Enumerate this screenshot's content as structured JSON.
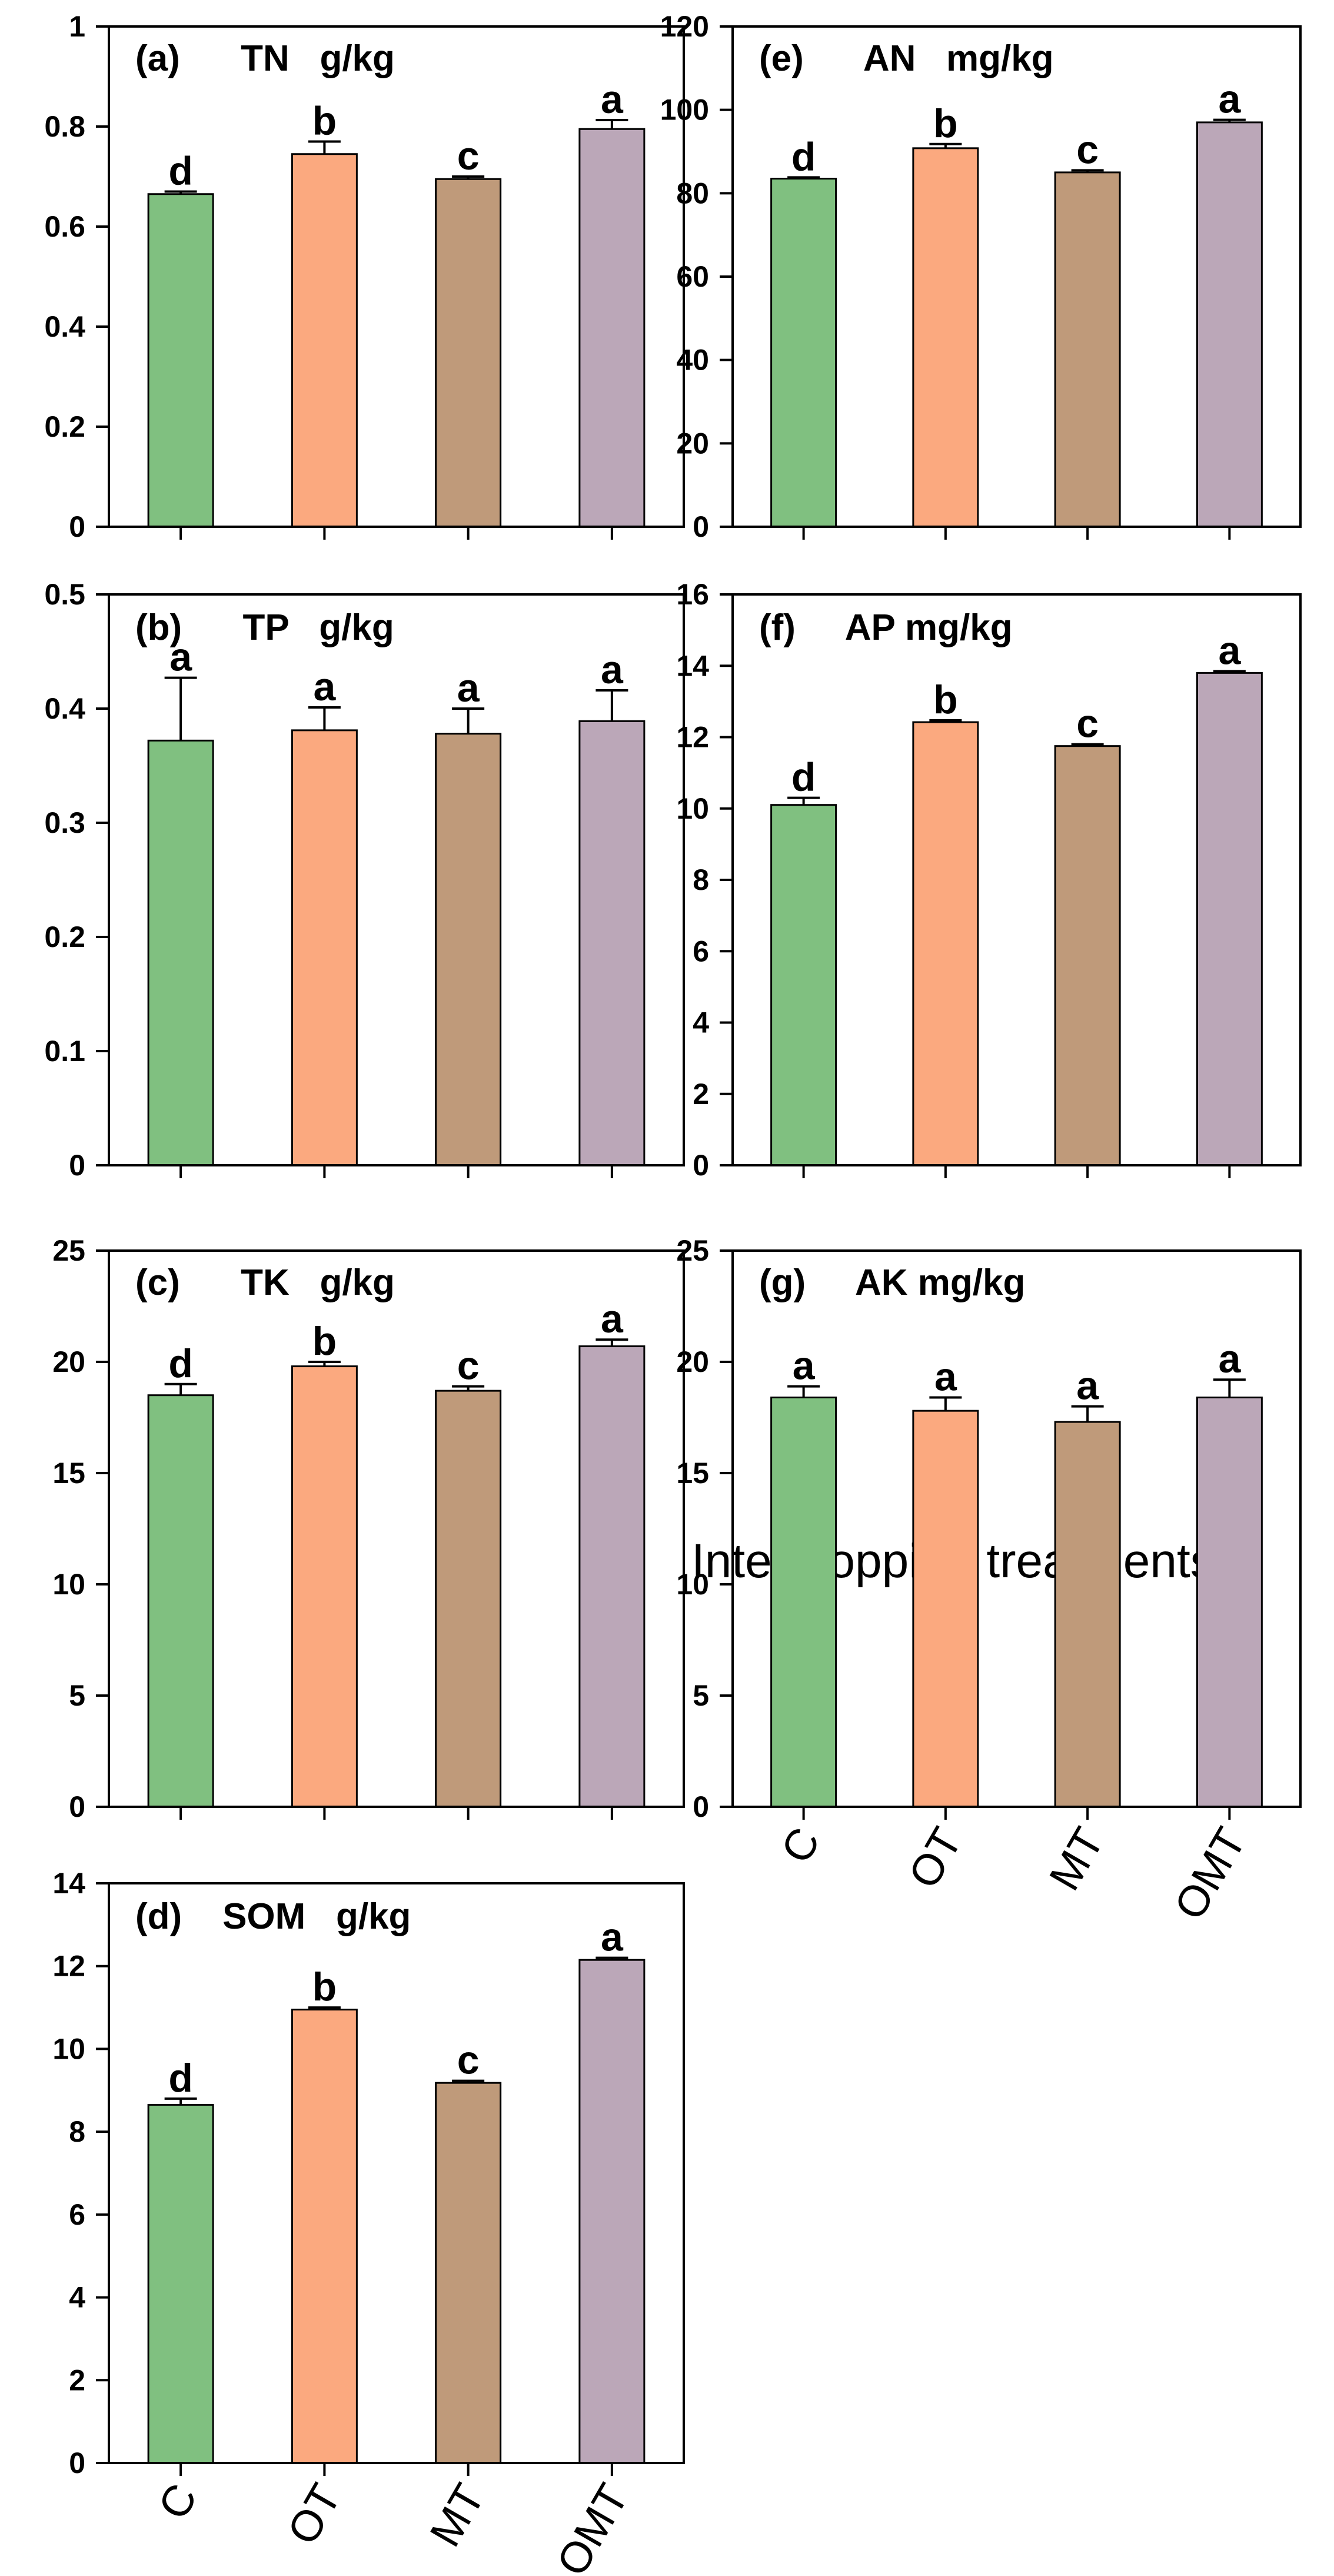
{
  "xaxis_title": "Intercropping treatments",
  "colors": {
    "C": "#80c080",
    "OT": "#fba97f",
    "MT": "#bf9a7a",
    "OMT": "#bba7b8"
  },
  "chart_data": [
    {
      "id": "a",
      "type": "bar",
      "title": "(a)      TN   g/kg",
      "categories": [
        "C",
        "OT",
        "MT",
        "OMT"
      ],
      "values": [
        0.665,
        0.745,
        0.695,
        0.795
      ],
      "errors": [
        0.005,
        0.025,
        0.005,
        0.018
      ],
      "letters": [
        "d",
        "b",
        "c",
        "a"
      ],
      "ylim": [
        0,
        1
      ],
      "yticks": [
        0,
        0.2,
        0.4,
        0.6,
        0.8,
        1
      ],
      "ytick_labels": [
        "0",
        "0.2",
        "0.4",
        "0.6",
        "0.8",
        "1"
      ]
    },
    {
      "id": "b",
      "type": "bar",
      "title": "(b)      TP   g/kg",
      "categories": [
        "C",
        "OT",
        "MT",
        "OMT"
      ],
      "values": [
        0.372,
        0.381,
        0.378,
        0.389
      ],
      "errors": [
        0.055,
        0.02,
        0.022,
        0.027
      ],
      "letters": [
        "a",
        "a",
        "a",
        "a"
      ],
      "ylim": [
        0,
        0.5
      ],
      "yticks": [
        0,
        0.1,
        0.2,
        0.3,
        0.4,
        0.5
      ],
      "ytick_labels": [
        "0",
        "0.1",
        "0.2",
        "0.3",
        "0.4",
        "0.5"
      ]
    },
    {
      "id": "c",
      "type": "bar",
      "title": "(c)      TK   g/kg",
      "categories": [
        "C",
        "OT",
        "MT",
        "OMT"
      ],
      "values": [
        18.5,
        19.8,
        18.7,
        20.7
      ],
      "errors": [
        0.5,
        0.2,
        0.2,
        0.3
      ],
      "letters": [
        "d",
        "b",
        "c",
        "a"
      ],
      "ylim": [
        0,
        25
      ],
      "yticks": [
        0,
        5,
        10,
        15,
        20,
        25
      ],
      "ytick_labels": [
        "0",
        "5",
        "10",
        "15",
        "20",
        "25"
      ]
    },
    {
      "id": "d",
      "type": "bar",
      "title": "(d)    SOM   g/kg",
      "categories": [
        "C",
        "OT",
        "MT",
        "OMT"
      ],
      "values": [
        8.65,
        10.95,
        9.18,
        12.15
      ],
      "errors": [
        0.15,
        0.05,
        0.05,
        0.05
      ],
      "letters": [
        "d",
        "b",
        "c",
        "a"
      ],
      "ylim": [
        0,
        14
      ],
      "yticks": [
        0,
        2,
        4,
        6,
        8,
        10,
        12,
        14
      ],
      "ytick_labels": [
        "0",
        "2",
        "4",
        "6",
        "8",
        "10",
        "12",
        "14"
      ]
    },
    {
      "id": "e",
      "type": "bar",
      "title": "(e)      AN   mg/kg",
      "categories": [
        "C",
        "OT",
        "MT",
        "OMT"
      ],
      "values": [
        83.5,
        90.8,
        85.0,
        97.0
      ],
      "errors": [
        0.3,
        1.0,
        0.5,
        0.6
      ],
      "letters": [
        "d",
        "b",
        "c",
        "a"
      ],
      "ylim": [
        0,
        120
      ],
      "yticks": [
        0,
        20,
        40,
        60,
        80,
        100,
        120
      ],
      "ytick_labels": [
        "0",
        "20",
        "40",
        "60",
        "80",
        "100",
        "120"
      ]
    },
    {
      "id": "f",
      "type": "bar",
      "title": "(f)     AP mg/kg",
      "categories": [
        "C",
        "OT",
        "MT",
        "OMT"
      ],
      "values": [
        10.1,
        12.42,
        11.75,
        13.8
      ],
      "errors": [
        0.2,
        0.05,
        0.05,
        0.05
      ],
      "letters": [
        "d",
        "b",
        "c",
        "a"
      ],
      "ylim": [
        0,
        16
      ],
      "yticks": [
        0,
        2,
        4,
        6,
        8,
        10,
        12,
        14,
        16
      ],
      "ytick_labels": [
        "0",
        "2",
        "4",
        "6",
        "8",
        "10",
        "12",
        "14",
        "16"
      ]
    },
    {
      "id": "g",
      "type": "bar",
      "title": "(g)     AK mg/kg",
      "categories": [
        "C",
        "OT",
        "MT",
        "OMT"
      ],
      "values": [
        18.4,
        17.8,
        17.3,
        18.4
      ],
      "errors": [
        0.5,
        0.6,
        0.7,
        0.8
      ],
      "letters": [
        "a",
        "a",
        "a",
        "a"
      ],
      "ylim": [
        0,
        25
      ],
      "yticks": [
        0,
        5,
        10,
        15,
        20,
        25
      ],
      "ytick_labels": [
        "0",
        "5",
        "10",
        "15",
        "20",
        "25"
      ]
    }
  ]
}
